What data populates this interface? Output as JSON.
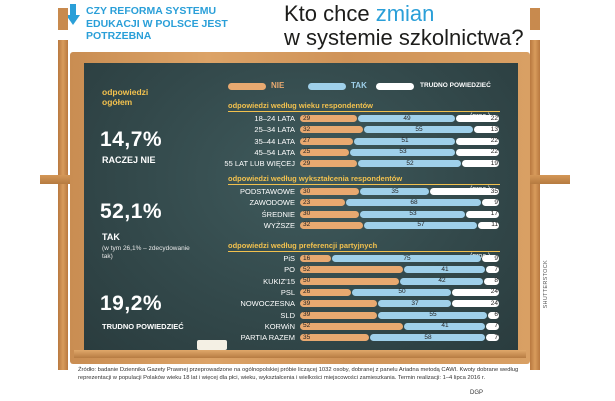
{
  "header": {
    "question": "CZY REFORMA SYSTEMU EDUKACJI W POLSCE JEST POTRZEBNA",
    "title_pre": "Kto chce ",
    "title_accent": "zmian",
    "title_post": "w systemie szkolnictwa?"
  },
  "overall": {
    "title": "odpowiedzi ogółem",
    "nie_value": "14,7%",
    "nie_label": "RACZEJ NIE",
    "tak_value": "52,1%",
    "tak_label": "TAK",
    "tak_sub": "(w tym 26,1% – zdecydowanie tak)",
    "trudno_value": "19,2%",
    "trudno_label": "TRUDNO POWIEDZIEĆ"
  },
  "unit_label": "(proc.)",
  "colors": {
    "nie": "#e8a970",
    "tak": "#9fd0ea",
    "trudno": "#ffffff",
    "accent": "#f2c14e"
  },
  "chart_data": {
    "type": "bar",
    "stacked": true,
    "orientation": "horizontal",
    "legend": [
      "NIE",
      "TAK",
      "TRUDNO POWIEDZIEĆ"
    ],
    "legend_placement": "top",
    "groups": [
      {
        "title": "odpowiedzi według wieku respondentów",
        "categories": [
          "18–24 LATA",
          "25–34 LATA",
          "35–44 LATA",
          "45–54 LATA",
          "55 LAT LUB WIĘCEJ"
        ],
        "nie": [
          29,
          32,
          27,
          25,
          29
        ],
        "tak": [
          49,
          55,
          51,
          53,
          52
        ],
        "trudno": [
          22,
          13,
          22,
          22,
          19
        ]
      },
      {
        "title": "odpowiedzi według wykształcenia respondentów",
        "categories": [
          "PODSTAWOWE",
          "ZAWODOWE",
          "ŚREDNIE",
          "WYŻSZE"
        ],
        "nie": [
          30,
          23,
          30,
          32
        ],
        "tak": [
          35,
          68,
          53,
          57
        ],
        "trudno": [
          35,
          9,
          17,
          11
        ]
      },
      {
        "title": "odpowiedzi według preferencji partyjnych",
        "categories": [
          "PiS",
          "PO",
          "KUKIZ'15",
          "PSL",
          "NOWOCZESNA",
          "SLD",
          "KORWiN",
          "PARTIA RAZEM"
        ],
        "nie": [
          16,
          52,
          50,
          26,
          39,
          39,
          52,
          35
        ],
        "tak": [
          75,
          41,
          42,
          50,
          37,
          55,
          41,
          58
        ],
        "trudno": [
          9,
          7,
          8,
          24,
          24,
          6,
          7,
          7
        ]
      }
    ]
  },
  "source": "Źródło: badanie Dziennika Gazety Prawnej przeprowadzone na ogólnopolskiej próbie liczącej 1032 osoby, dobranej z panelu Ariadna metodą CAWI. Kwoty dobrane według reprezentacji w populacji Polaków wieku 18 lat i więcej dla płci, wieku, wykształcenia i wielkości miejscowości zamieszkania. Termin realizacji: 1–4 lipca 2016 r.",
  "credit": "SHUTTERSTOCK",
  "logos": "DGP"
}
